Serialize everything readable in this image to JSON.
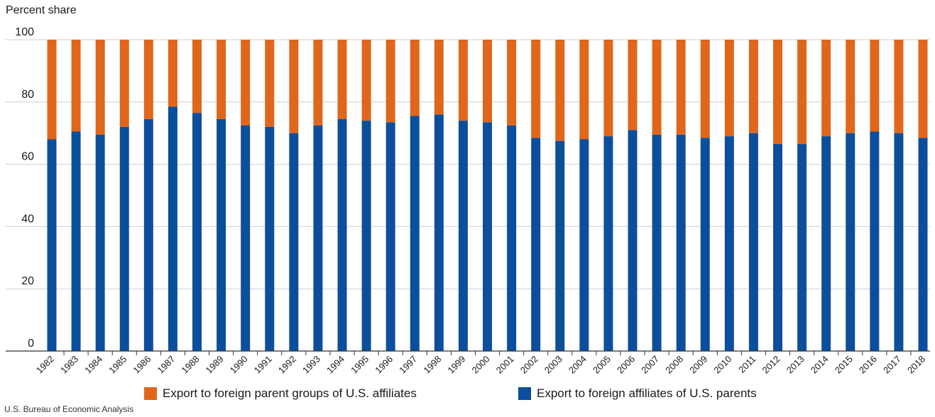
{
  "chart_data": {
    "type": "bar",
    "stacked": true,
    "ylabel": "Percent share",
    "ylim": [
      0,
      100
    ],
    "yticks": [
      0,
      20,
      40,
      60,
      80,
      100
    ],
    "grid": true,
    "legend_position": "bottom",
    "categories": [
      "1982",
      "1983",
      "1984",
      "1985",
      "1986",
      "1987",
      "1988",
      "1989",
      "1990",
      "1991",
      "1992",
      "1993",
      "1994",
      "1995",
      "1996",
      "1997",
      "1998",
      "1999",
      "2000",
      "2001",
      "2002",
      "2003",
      "2004",
      "2005",
      "2006",
      "2007",
      "2008",
      "2009",
      "2010",
      "2011",
      "2012",
      "2013",
      "2014",
      "2015",
      "2016",
      "2017",
      "2018"
    ],
    "series": [
      {
        "name": "Export to foreign affiliates of U.S. parents",
        "color": "#0b4f9c",
        "values": [
          68,
          70.5,
          69.5,
          72,
          74.5,
          78.5,
          76.5,
          74.5,
          72.5,
          72,
          70,
          72.5,
          74.5,
          74,
          73.5,
          75.5,
          76,
          74,
          73.5,
          72.5,
          68.5,
          67.5,
          68,
          69,
          71,
          69.5,
          69.5,
          68.5,
          69,
          70,
          66.5,
          66.5,
          69,
          70,
          70.5,
          70,
          68.5
        ]
      },
      {
        "name": "Export to foreign parent groups of U.S. affiliates",
        "color": "#e0661c",
        "values": [
          32,
          29.5,
          30.5,
          28,
          25.5,
          21.5,
          23.5,
          25.5,
          27.5,
          28,
          30,
          27.5,
          25.5,
          26,
          26.5,
          24.5,
          24,
          26,
          26.5,
          27.5,
          31.5,
          32.5,
          32,
          31,
          29,
          30.5,
          30.5,
          31.5,
          31,
          30,
          33.5,
          33.5,
          31,
          30,
          29.5,
          30,
          31.5
        ]
      }
    ]
  },
  "source": "U.S. Bureau of Economic Analysis"
}
